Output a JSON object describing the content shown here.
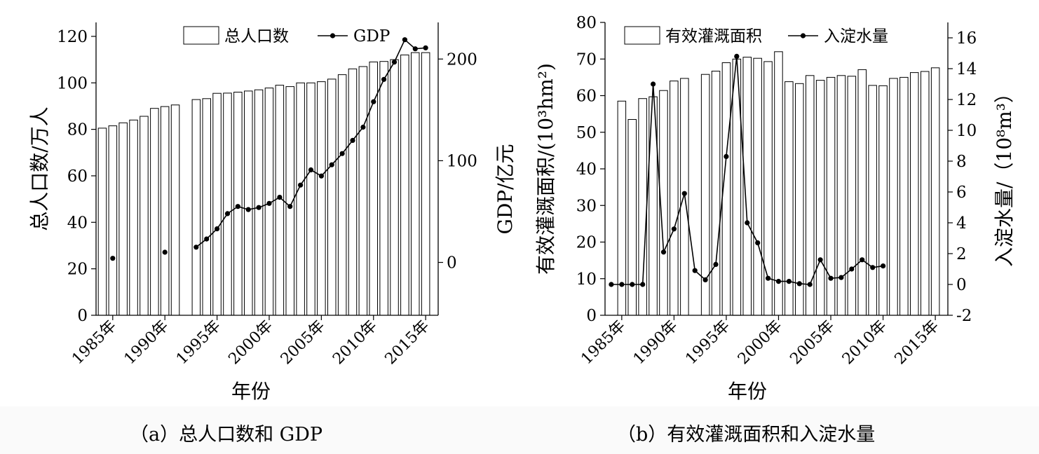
{
  "captions": {
    "a": "（a）总人口数和 GDP",
    "b": "（b）有效灌溉面积和入淀水量"
  },
  "chart_data": [
    {
      "type": "bar",
      "combo": "bar + line (dual y axis)",
      "xlabel": "年份",
      "ylabel": "总人口数/万人",
      "y2label": "GDP/亿元",
      "ylim": [
        0,
        126
      ],
      "y2lim": [
        -52,
        236
      ],
      "yticks": [
        "0",
        "20",
        "40",
        "60",
        "80",
        "100",
        "120"
      ],
      "y2ticks": [
        "0",
        "100",
        "200"
      ],
      "xticklabels": [
        "1985年",
        "1990年",
        "1995年",
        "2000年",
        "2005年",
        "2010年",
        "2015年"
      ],
      "xlim": [
        1983.4,
        2016.2
      ],
      "grid": false,
      "legend_position": "top-center",
      "series": [
        {
          "name": "总人口数",
          "type": "bar",
          "axis": "left",
          "x": [
            1984,
            1985,
            1986,
            1987,
            1988,
            1989,
            1990,
            1991,
            1993,
            1994,
            1995,
            1996,
            1997,
            1998,
            1999,
            2000,
            2001,
            2002,
            2003,
            2004,
            2005,
            2006,
            2007,
            2008,
            2009,
            2010,
            2011,
            2012,
            2013,
            2014,
            2015
          ],
          "values": [
            80.5,
            81.5,
            82.8,
            84,
            85.6,
            89,
            89.8,
            90.5,
            92.8,
            93.2,
            95.5,
            95.6,
            96,
            96.5,
            97,
            97.8,
            99,
            98.4,
            100,
            100,
            100.5,
            101.6,
            103.5,
            106,
            107,
            109,
            109.2,
            110,
            112,
            113,
            113
          ]
        },
        {
          "name": "GDP",
          "type": "line",
          "axis": "right",
          "x": [
            1985,
            1990,
            1993,
            1994,
            1995,
            1996,
            1997,
            1998,
            1999,
            2000,
            2001,
            2002,
            2003,
            2004,
            2005,
            2006,
            2007,
            2008,
            2009,
            2010,
            2011,
            2012,
            2013,
            2014,
            2015
          ],
          "values": [
            4,
            10,
            15,
            23,
            33,
            48,
            55,
            52,
            54,
            58,
            64,
            55,
            76,
            91,
            85,
            96,
            107,
            120,
            133,
            158,
            180,
            197,
            219,
            210,
            211
          ],
          "segments": [
            [
              0,
              0
            ],
            [
              1,
              1
            ],
            [
              2,
              24
            ]
          ]
        }
      ]
    },
    {
      "type": "bar",
      "combo": "bar + line (dual y axis)",
      "xlabel": "年份",
      "ylabel": "有效灌溉面积/(10³hm²)",
      "y2label": "入淀水量/（10⁸m³）",
      "ylim": [
        0,
        80
      ],
      "y2lim": [
        -2,
        17
      ],
      "yticks": [
        "0",
        "10",
        "20",
        "30",
        "40",
        "50",
        "60",
        "70",
        "80"
      ],
      "y2ticks": [
        "-2",
        "0",
        "2",
        "4",
        "6",
        "8",
        "10",
        "12",
        "14",
        "16"
      ],
      "xticklabels": [
        "1985年",
        "1990年",
        "1995年",
        "2000年",
        "2005年",
        "2010年",
        "2015年"
      ],
      "xlim": [
        1983.4,
        2016.2
      ],
      "grid": false,
      "legend_position": "top-center",
      "series": [
        {
          "name": "有效灌溉面积",
          "type": "bar",
          "axis": "left",
          "x": [
            1985,
            1986,
            1987,
            1988,
            1989,
            1990,
            1991,
            1993,
            1994,
            1995,
            1996,
            1997,
            1998,
            1999,
            2000,
            2001,
            2002,
            2003,
            2004,
            2005,
            2006,
            2007,
            2008,
            2009,
            2010,
            2011,
            2012,
            2013,
            2014,
            2015
          ],
          "values": [
            58.5,
            53.5,
            59.2,
            59.7,
            61.4,
            64,
            64.7,
            65.8,
            66.7,
            69,
            70,
            70.5,
            70.2,
            69.3,
            72,
            63.8,
            63.3,
            65.5,
            64.2,
            65,
            65.5,
            65.3,
            67.1,
            62.8,
            62.7,
            64.7,
            65,
            66.3,
            66.6,
            67.6
          ]
        },
        {
          "name": "入淀水量",
          "type": "line",
          "axis": "right",
          "x": [
            1984,
            1985,
            1986,
            1987,
            1988,
            1989,
            1990,
            1991,
            1992,
            1993,
            1994,
            1995,
            1996,
            1997,
            1998,
            1999,
            2000,
            2001,
            2002,
            2003,
            2004,
            2005,
            2006,
            2007,
            2008,
            2009,
            2010
          ],
          "values": [
            0,
            0,
            0,
            0,
            13,
            2.1,
            3.6,
            5.9,
            0.9,
            0.3,
            1.3,
            8.3,
            14.8,
            4,
            2.7,
            0.4,
            0.2,
            0.2,
            0.05,
            0,
            1.6,
            0.4,
            0.45,
            1,
            1.6,
            1.1,
            1.2
          ]
        }
      ]
    }
  ]
}
